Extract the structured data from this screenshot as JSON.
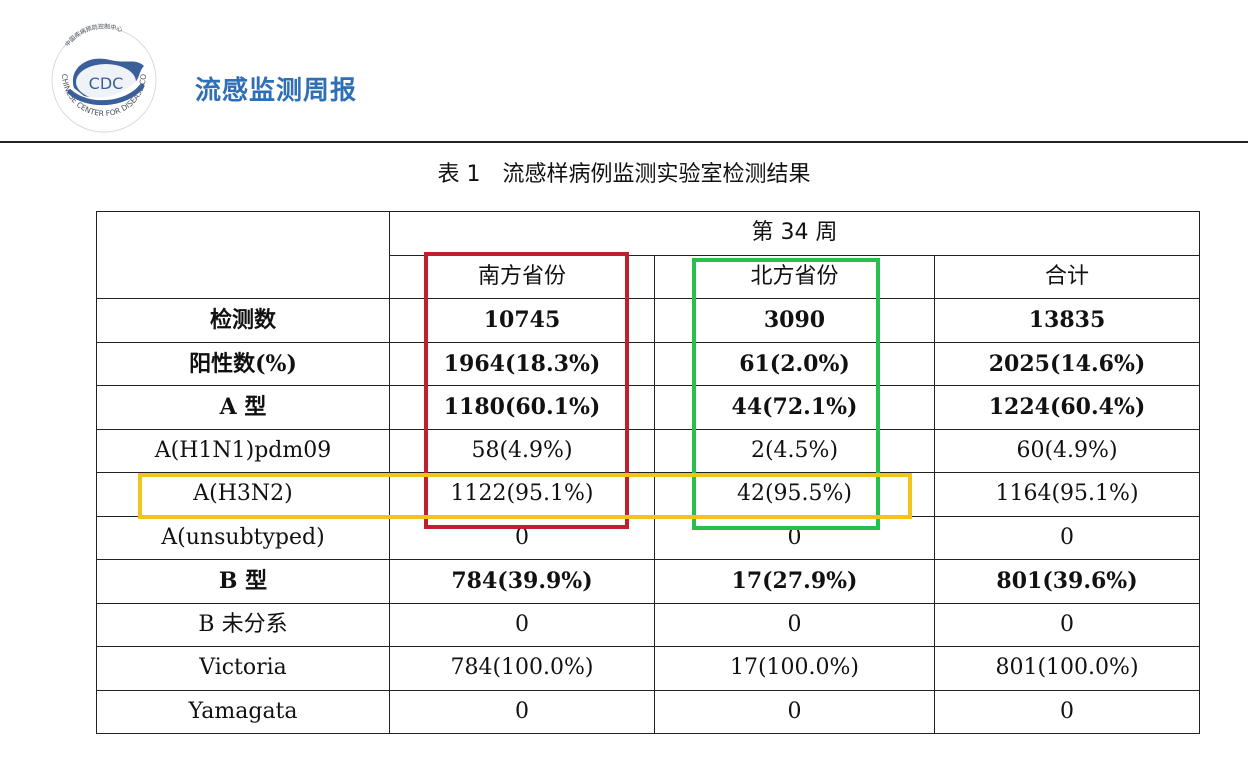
{
  "header": {
    "logo_text": "CDC",
    "logo_ring_text": "CHINESE CENTER FOR DISEASE CONTROL AND PREVENTION",
    "logo_top_text": "中国疾病预防控制中心",
    "title": "流感监测周报"
  },
  "caption": {
    "number": "表 1",
    "text": "流感样病例监测实验室检测结果"
  },
  "table": {
    "week_label": "第 34 周",
    "columns": [
      "南方省份",
      "北方省份",
      "合计"
    ],
    "rows": [
      {
        "label": "检测数",
        "values": [
          "10745",
          "3090",
          "13835"
        ]
      },
      {
        "label": "阳性数(%)",
        "values": [
          "1964(18.3%)",
          "61(2.0%)",
          "2025(14.6%)"
        ]
      },
      {
        "label": "A 型",
        "values": [
          "1180(60.1%)",
          "44(72.1%)",
          "1224(60.4%)"
        ]
      },
      {
        "label": "A(H1N1)pdm09",
        "values": [
          "58(4.9%)",
          "2(4.5%)",
          "60(4.9%)"
        ]
      },
      {
        "label": "A(H3N2)",
        "values": [
          "1122(95.1%)",
          "42(95.5%)",
          "1164(95.1%)"
        ]
      },
      {
        "label": "A(unsubtyped)",
        "values": [
          "0",
          "0",
          "0"
        ]
      },
      {
        "label": "B 型",
        "values": [
          "784(39.9%)",
          "17(27.9%)",
          "801(39.6%)"
        ]
      },
      {
        "label": "B 未分系",
        "values": [
          "0",
          "0",
          "0"
        ]
      },
      {
        "label": "Victoria",
        "values": [
          "784(100.0%)",
          "17(100.0%)",
          "801(100.0%)"
        ]
      },
      {
        "label": "Yamagata",
        "values": [
          "0",
          "0",
          "0"
        ]
      }
    ]
  },
  "highlights": {
    "southern_column_color": "#c0202b",
    "northern_column_color": "#27c04a",
    "h3n2_row_color": "#f2c318"
  },
  "colors": {
    "title_blue": "#2f6fb6"
  }
}
